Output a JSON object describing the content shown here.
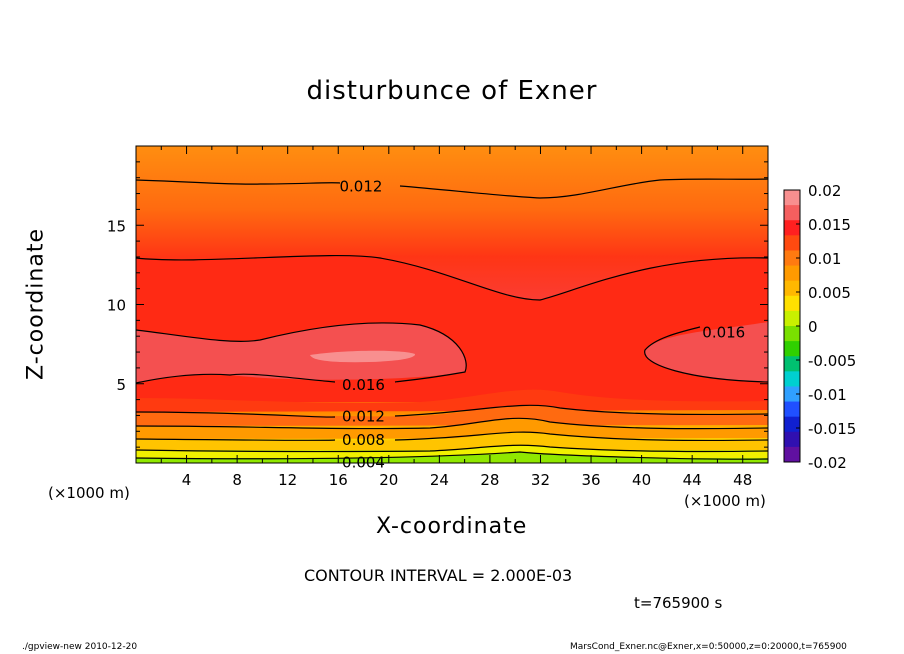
{
  "chart_data": {
    "type": "heatmap",
    "title": "disturbunce of Exner",
    "xlabel": "X-coordinate",
    "ylabel": "Z-coordinate",
    "x_unit": "(×1000 m)",
    "y_unit": "(×1000 m)",
    "xlim": [
      0,
      50
    ],
    "ylim": [
      0,
      20
    ],
    "x_ticks": [
      4,
      8,
      12,
      16,
      20,
      24,
      28,
      32,
      36,
      40,
      44,
      48
    ],
    "y_ticks": [
      5,
      10,
      15
    ],
    "colorbar": {
      "range": [
        -0.02,
        0.02
      ],
      "labels": [
        "0.02",
        "0.015",
        "0.01",
        "0.005",
        "0",
        "-0.005",
        "-0.01",
        "-0.015",
        "-0.02"
      ],
      "colors": [
        "#f88f8f",
        "#f55f5f",
        "#ff2020",
        "#ff4a10",
        "#ff7a10",
        "#ff9a00",
        "#ffb800",
        "#ffe000",
        "#c8f000",
        "#7ae000",
        "#30d000",
        "#00c070",
        "#00d0d0",
        "#30a0ff",
        "#2050ff",
        "#1020d0",
        "#3010b0",
        "#6010a0"
      ]
    },
    "contour_interval": "CONTOUR INTERVAL = 2.000E-03",
    "contour_labels": [
      {
        "text": "0.012",
        "x": 17.8,
        "z": 17.5
      },
      {
        "text": "0.016",
        "x": 46.5,
        "z": 8.3
      },
      {
        "text": "0.016",
        "x": 18,
        "z": 5
      },
      {
        "text": "0.012",
        "x": 18,
        "z": 3
      },
      {
        "text": "0.008",
        "x": 18,
        "z": 1.5
      },
      {
        "text": "0.004",
        "x": 18,
        "z": 0.1
      }
    ]
  },
  "annotations": {
    "contour_interval": "CONTOUR INTERVAL = 2.000E-03",
    "time": "t=765900  s",
    "footer_left": "./gpview-new   2010-12-20",
    "footer_right": "MarsCond_Exner.nc@Exner,x=0:50000,z=0:20000,t=765900"
  }
}
